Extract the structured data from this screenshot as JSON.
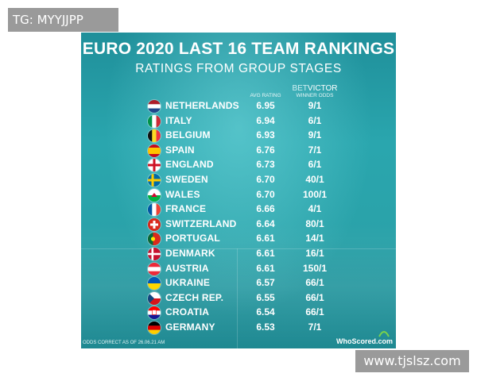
{
  "watermark_top": "TG: MYYJJPP",
  "watermark_bottom": "www.tjslsz.com",
  "poster": {
    "title": "EURO 2020 LAST 16 TEAM RANKINGS",
    "subtitle": "RATINGS FROM GROUP STAGES",
    "col_rating": "AVG RATING",
    "brand_bet": "BET",
    "brand_victor": "VICTOR",
    "col_odds": "WINNER ODDS",
    "footnote": "ODDS CORRECT AS OF 26.06.21 AM",
    "logo": "WhoScored.com",
    "colors": {
      "accent": "#2aa6ae",
      "logo": "#7bd44a"
    }
  },
  "teams": [
    {
      "name": "NETHERLANDS",
      "rating": "6.95",
      "odds": "9/1",
      "flag": "netherlands"
    },
    {
      "name": "ITALY",
      "rating": "6.94",
      "odds": "6/1",
      "flag": "italy"
    },
    {
      "name": "BELGIUM",
      "rating": "6.93",
      "odds": "9/1",
      "flag": "belgium"
    },
    {
      "name": "SPAIN",
      "rating": "6.76",
      "odds": "7/1",
      "flag": "spain"
    },
    {
      "name": "ENGLAND",
      "rating": "6.73",
      "odds": "6/1",
      "flag": "england"
    },
    {
      "name": "SWEDEN",
      "rating": "6.70",
      "odds": "40/1",
      "flag": "sweden"
    },
    {
      "name": "WALES",
      "rating": "6.70",
      "odds": "100/1",
      "flag": "wales"
    },
    {
      "name": "FRANCE",
      "rating": "6.66",
      "odds": "4/1",
      "flag": "france"
    },
    {
      "name": "SWITZERLAND",
      "rating": "6.64",
      "odds": "80/1",
      "flag": "switzerland"
    },
    {
      "name": "PORTUGAL",
      "rating": "6.61",
      "odds": "14/1",
      "flag": "portugal"
    },
    {
      "name": "DENMARK",
      "rating": "6.61",
      "odds": "16/1",
      "flag": "denmark"
    },
    {
      "name": "AUSTRIA",
      "rating": "6.61",
      "odds": "150/1",
      "flag": "austria"
    },
    {
      "name": "UKRAINE",
      "rating": "6.57",
      "odds": "66/1",
      "flag": "ukraine"
    },
    {
      "name": "CZECH REP.",
      "rating": "6.55",
      "odds": "66/1",
      "flag": "czech"
    },
    {
      "name": "CROATIA",
      "rating": "6.54",
      "odds": "66/1",
      "flag": "croatia"
    },
    {
      "name": "GERMANY",
      "rating": "6.53",
      "odds": "7/1",
      "flag": "germany"
    }
  ]
}
